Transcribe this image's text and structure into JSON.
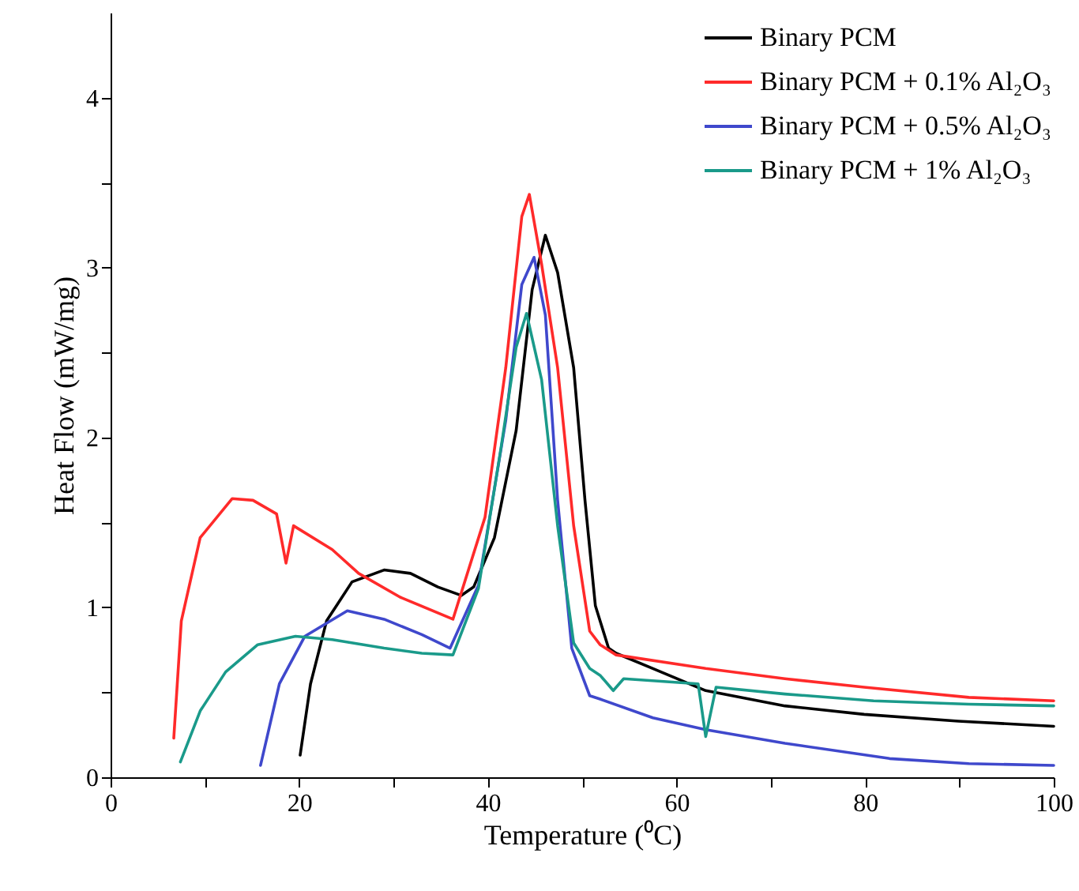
{
  "chart_data": {
    "type": "line",
    "xlabel": "Temperature (⁰C)",
    "ylabel": "Heat Flow (mW/mg)",
    "xlim": [
      0,
      100
    ],
    "ylim": [
      0,
      4.5
    ],
    "xticks": [
      0,
      {
        "value": 10,
        "label": null
      },
      20,
      {
        "value": 30,
        "label": null
      },
      40,
      {
        "value": 50,
        "label": null
      },
      60,
      {
        "value": 70,
        "label": null
      },
      80,
      {
        "value": 90,
        "label": null
      },
      100
    ],
    "yticks": [
      0,
      {
        "value": 0.5,
        "label": null
      },
      1,
      {
        "value": 1.5,
        "label": null
      },
      2,
      {
        "value": 2.5,
        "label": null
      },
      3,
      {
        "value": 3.5,
        "label": null
      },
      4
    ],
    "grid": false,
    "legend": "top right",
    "line_style": "solid",
    "marker": "none",
    "series": [
      {
        "name": "Binary PCM",
        "color": "#000000",
        "x": [
          20.1,
          21.2,
          22.9,
          25.6,
          29,
          31.8,
          34.7,
          37.2,
          38.5,
          40.7,
          43,
          44.7,
          46.1,
          47.4,
          49.1,
          50.3,
          51.4,
          52.8,
          53.6,
          57.5,
          63.1,
          71.5,
          79.9,
          89.9,
          100
        ],
        "values": [
          0.13,
          0.55,
          0.92,
          1.15,
          1.22,
          1.2,
          1.12,
          1.07,
          1.12,
          1.41,
          2.04,
          2.87,
          3.19,
          2.97,
          2.41,
          1.63,
          1.01,
          0.76,
          0.73,
          0.64,
          0.51,
          0.42,
          0.37,
          0.33,
          0.3
        ]
      },
      {
        "name": "Binary PCM + 0.1% Al₂O₃",
        "color": "#ff2a2a",
        "x": [
          6.7,
          7.5,
          9.5,
          12.9,
          15.1,
          17.6,
          18.6,
          19.4,
          23.5,
          26.3,
          30.7,
          36.3,
          39.7,
          41.9,
          43.6,
          44.4,
          45.7,
          47.4,
          49.1,
          50.8,
          51.9,
          53.6,
          63.1,
          71.5,
          79.9,
          91,
          100
        ],
        "values": [
          0.23,
          0.92,
          1.41,
          1.64,
          1.63,
          1.55,
          1.26,
          1.48,
          1.34,
          1.2,
          1.06,
          0.93,
          1.53,
          2.41,
          3.3,
          3.43,
          3.02,
          2.41,
          1.48,
          0.86,
          0.78,
          0.72,
          0.64,
          0.58,
          0.53,
          0.47,
          0.45
        ]
      },
      {
        "name": "Binary PCM + 0.5% Al₂O₃",
        "color": "#3f48cc",
        "x": [
          15.9,
          17.9,
          20.6,
          25.1,
          29,
          33,
          36,
          39,
          41.9,
          43.6,
          44.9,
          46.1,
          47.4,
          48.9,
          50.8,
          51.9,
          57.5,
          63.1,
          71.5,
          82.6,
          91,
          100
        ],
        "values": [
          0.07,
          0.55,
          0.83,
          0.98,
          0.93,
          0.84,
          0.76,
          1.13,
          2.1,
          2.9,
          3.06,
          2.72,
          1.63,
          0.76,
          0.48,
          0.46,
          0.35,
          0.28,
          0.2,
          0.11,
          0.08,
          0.07
        ]
      },
      {
        "name": "Binary PCM + 1% Al₂O₃",
        "color": "#1a9a8a",
        "x": [
          7.4,
          9.5,
          12.2,
          15.6,
          19.6,
          23.5,
          29,
          33,
          36.3,
          39,
          41.4,
          43,
          44.1,
          45.7,
          47.4,
          49.1,
          50.8,
          51.9,
          53.3,
          54.4,
          62.3,
          63.1,
          64.2,
          71.5,
          80.9,
          91,
          100
        ],
        "values": [
          0.09,
          0.39,
          0.62,
          0.78,
          0.83,
          0.81,
          0.76,
          0.73,
          0.72,
          1.11,
          1.94,
          2.53,
          2.73,
          2.34,
          1.48,
          0.79,
          0.64,
          0.6,
          0.51,
          0.58,
          0.55,
          0.24,
          0.53,
          0.49,
          0.45,
          0.43,
          0.42
        ]
      }
    ]
  }
}
